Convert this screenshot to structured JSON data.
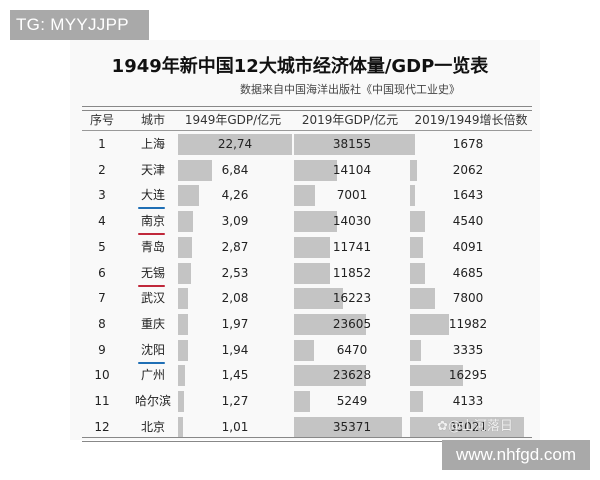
{
  "watermarks": {
    "top_left": "TG: MYYJJPP",
    "bottom_right": "www.nhfgd.com",
    "weibo": "@山河落日"
  },
  "document": {
    "title": "1949年新中国12大城市经济体量/GDP一览表",
    "subtitle": "数据来自中国海洋出版社《中国现代工业史》",
    "headers": [
      "序号",
      "城市",
      "1949年GDP/亿元",
      "2019年GDP/亿元",
      "2019/1949增长倍数"
    ],
    "rows": [
      {
        "rank": "1",
        "city": "上海",
        "gdp1949": "22,74",
        "gdp2019": "38155",
        "growth": "1678",
        "underline": ""
      },
      {
        "rank": "2",
        "city": "天津",
        "gdp1949": "6,84",
        "gdp2019": "14104",
        "growth": "2062",
        "underline": ""
      },
      {
        "rank": "3",
        "city": "大连",
        "gdp1949": "4,26",
        "gdp2019": "7001",
        "growth": "1643",
        "underline": "#1f6fb5"
      },
      {
        "rank": "4",
        "city": "南京",
        "gdp1949": "3,09",
        "gdp2019": "14030",
        "growth": "4540",
        "underline": "#c0283a"
      },
      {
        "rank": "5",
        "city": "青岛",
        "gdp1949": "2,87",
        "gdp2019": "11741",
        "growth": "4091",
        "underline": ""
      },
      {
        "rank": "6",
        "city": "无锡",
        "gdp1949": "2,53",
        "gdp2019": "11852",
        "growth": "4685",
        "underline": "#c0283a"
      },
      {
        "rank": "7",
        "city": "武汉",
        "gdp1949": "2,08",
        "gdp2019": "16223",
        "growth": "7800",
        "underline": ""
      },
      {
        "rank": "8",
        "city": "重庆",
        "gdp1949": "1,97",
        "gdp2019": "23605",
        "growth": "11982",
        "underline": ""
      },
      {
        "rank": "9",
        "city": "沈阳",
        "gdp1949": "1,94",
        "gdp2019": "6470",
        "growth": "3335",
        "underline": "#1f6fb5"
      },
      {
        "rank": "10",
        "city": "广州",
        "gdp1949": "1,45",
        "gdp2019": "23628",
        "growth": "16295",
        "underline": ""
      },
      {
        "rank": "11",
        "city": "哈尔滨",
        "gdp1949": "1,27",
        "gdp2019": "5249",
        "growth": "4133",
        "underline": ""
      },
      {
        "rank": "12",
        "city": "北京",
        "gdp1949": "1,01",
        "gdp2019": "35371",
        "growth": "35021",
        "underline": ""
      }
    ]
  },
  "chart_data": {
    "type": "table",
    "title": "1949年新中国12大城市经济体量/GDP一览表",
    "subtitle": "数据来自中国海洋出版社《中国现代工业史》",
    "categories": [
      "上海",
      "天津",
      "大连",
      "南京",
      "青岛",
      "无锡",
      "武汉",
      "重庆",
      "沈阳",
      "广州",
      "哈尔滨",
      "北京"
    ],
    "series": [
      {
        "name": "1949年GDP/亿元",
        "values": [
          22.74,
          6.84,
          4.26,
          3.09,
          2.87,
          2.53,
          2.08,
          1.97,
          1.94,
          1.45,
          1.27,
          1.01
        ]
      },
      {
        "name": "2019年GDP/亿元",
        "values": [
          38155,
          14104,
          7001,
          14030,
          11741,
          11852,
          16223,
          23605,
          6470,
          23628,
          5249,
          35371
        ]
      },
      {
        "name": "2019/1949增长倍数",
        "values": [
          1678,
          2062,
          1643,
          4540,
          4091,
          4685,
          7800,
          11982,
          3335,
          16295,
          4133,
          35021
        ]
      }
    ]
  }
}
